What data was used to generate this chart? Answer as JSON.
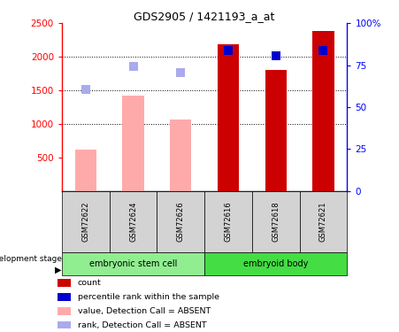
{
  "title": "GDS2905 / 1421193_a_at",
  "samples": [
    "GSM72622",
    "GSM72624",
    "GSM72626",
    "GSM72616",
    "GSM72618",
    "GSM72621"
  ],
  "bar_values": [
    620,
    1420,
    1070,
    2180,
    1800,
    2390
  ],
  "bar_colors": [
    "#ffaaaa",
    "#ffaaaa",
    "#ffaaaa",
    "#cc0000",
    "#cc0000",
    "#cc0000"
  ],
  "rank_dots": [
    1510,
    1860,
    1760,
    2090,
    2020,
    2095
  ],
  "rank_colors": [
    "#aaaaee",
    "#aaaaee",
    "#aaaaee",
    "#0000cc",
    "#0000cc",
    "#0000cc"
  ],
  "ylim_left": [
    0,
    2500
  ],
  "ylim_right": [
    0,
    100
  ],
  "yticks_left": [
    500,
    1000,
    1500,
    2000,
    2500
  ],
  "yticks_right": [
    0,
    25,
    50,
    75,
    100
  ],
  "ytick_labels_right": [
    "0",
    "25",
    "50",
    "75",
    "100%"
  ],
  "grid_values": [
    1000,
    1500,
    2000
  ],
  "legend_items": [
    {
      "label": "count",
      "color": "#cc0000"
    },
    {
      "label": "percentile rank within the sample",
      "color": "#0000cc"
    },
    {
      "label": "value, Detection Call = ABSENT",
      "color": "#ffaaaa"
    },
    {
      "label": "rank, Detection Call = ABSENT",
      "color": "#aaaaee"
    }
  ],
  "group_names": [
    "embryonic stem cell",
    "embryoid body"
  ],
  "group_colors": [
    "#90ee90",
    "#44dd44"
  ],
  "group_ranges": [
    [
      0,
      3
    ],
    [
      3,
      6
    ]
  ],
  "cell_color": "#d3d3d3"
}
